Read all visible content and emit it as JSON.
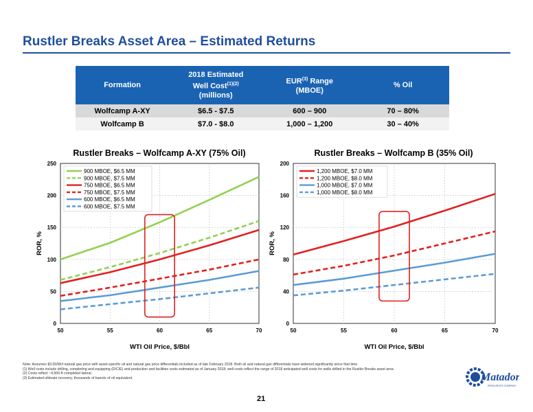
{
  "title": "Rustler Breaks Asset Area – Estimated Returns",
  "table": {
    "headers": {
      "formation": "Formation",
      "cost_line1": "2018 Estimated",
      "cost_line2": "Well Cost",
      "cost_sup": "(1)(2)",
      "cost_line3": "(millions)",
      "eur_line1": "EUR",
      "eur_sup": "(3)",
      "eur_line1b": " Range",
      "eur_line2": "(MBOE)",
      "oil": "% Oil"
    },
    "rows": [
      {
        "formation": "Wolfcamp A-XY",
        "cost": "$6.5 - $7.5",
        "eur": "600 – 900",
        "oil": "70 – 80%"
      },
      {
        "formation": "Wolfcamp B",
        "cost": "$7.0 - $8.0",
        "eur": "1,000 – 1,200",
        "oil": "30 – 40%"
      }
    ]
  },
  "chart_data": [
    {
      "type": "line",
      "title": "Rustler Breaks – Wolfcamp A-XY (75% Oil)",
      "xlabel": "WTI Oil Price, $/Bbl",
      "ylabel": "ROR, %",
      "xlim": [
        50,
        70
      ],
      "ylim": [
        0,
        250
      ],
      "xticks": [
        50,
        55,
        60,
        65,
        70
      ],
      "yticks": [
        0,
        50,
        100,
        150,
        200,
        250
      ],
      "legend_position": "top-left",
      "highlight_box": {
        "x": [
          58.5,
          61.5
        ],
        "y": [
          10,
          170
        ]
      },
      "series": [
        {
          "name": "900 MBOE, $6.5 MM",
          "color": "#92d050",
          "dash": false,
          "x": [
            50,
            55,
            60,
            65,
            70
          ],
          "y": [
            100,
            126,
            158,
            193,
            229
          ]
        },
        {
          "name": "900 MBOE, $7.5 MM",
          "color": "#92d050",
          "dash": true,
          "x": [
            50,
            55,
            60,
            65,
            70
          ],
          "y": [
            68,
            88,
            110,
            134,
            160
          ]
        },
        {
          "name": "750 MBOE, $6.5 MM",
          "color": "#e02020",
          "dash": false,
          "x": [
            50,
            55,
            60,
            65,
            70
          ],
          "y": [
            63,
            80,
            100,
            122,
            146
          ]
        },
        {
          "name": "750 MBOE, $7.5 MM",
          "color": "#e02020",
          "dash": true,
          "x": [
            50,
            55,
            60,
            65,
            70
          ],
          "y": [
            43,
            56,
            70,
            84,
            100
          ]
        },
        {
          "name": "600 MBOE, $6.5 MM",
          "color": "#5b9bd5",
          "dash": false,
          "x": [
            50,
            55,
            60,
            65,
            70
          ],
          "y": [
            35,
            44,
            56,
            68,
            82
          ]
        },
        {
          "name": "600 MBOE, $7.5 MM",
          "color": "#5b9bd5",
          "dash": true,
          "x": [
            50,
            55,
            60,
            65,
            70
          ],
          "y": [
            22,
            30,
            38,
            47,
            56
          ]
        }
      ]
    },
    {
      "type": "line",
      "title": "Rustler Breaks – Wolfcamp B (35% Oil)",
      "xlabel": "WTI Oil Price, $/Bbl",
      "ylabel": "ROR, %",
      "xlim": [
        50,
        70
      ],
      "ylim": [
        0,
        200
      ],
      "xticks": [
        50,
        55,
        60,
        65,
        70
      ],
      "yticks": [
        0,
        40,
        80,
        120,
        160,
        200
      ],
      "legend_position": "top-left",
      "highlight_box": {
        "x": [
          58.5,
          61.5
        ],
        "y": [
          28,
          140
        ]
      },
      "series": [
        {
          "name": "1,200 MBOE, $7.0 MM",
          "color": "#e02020",
          "dash": false,
          "x": [
            50,
            55,
            60,
            65,
            70
          ],
          "y": [
            86,
            103,
            121,
            141,
            162
          ]
        },
        {
          "name": "1,200 MBOE, $8.0 MM",
          "color": "#e02020",
          "dash": true,
          "x": [
            50,
            55,
            60,
            65,
            70
          ],
          "y": [
            61,
            72,
            85,
            100,
            115
          ]
        },
        {
          "name": "1,000 MBOE, $7.0 MM",
          "color": "#5b9bd5",
          "dash": false,
          "x": [
            50,
            55,
            60,
            65,
            70
          ],
          "y": [
            48,
            56,
            66,
            76,
            87
          ]
        },
        {
          "name": "1,000 MBOE, $8.0 MM",
          "color": "#5b9bd5",
          "dash": true,
          "x": [
            50,
            55,
            60,
            65,
            70
          ],
          "y": [
            35,
            41,
            48,
            55,
            62
          ]
        }
      ]
    }
  ],
  "notes": [
    "Note: Assumes $3.00/Mcf natural gas price with asset-specific oil and natural gas price differentials included as of late February 2018. Both oil and natural gas differentials have widened significantly since that time.",
    "(1)    Well costs include drilling, completing and equipping (D/C/E) and production and facilities costs estimated as of January 2018; well costs reflect the range of 2018 anticipated well costs for wells drilled in the Rustler Breaks asset area.",
    "(2)    Costs reflect ~4,500-ft completed lateral.",
    "(3)    Estimated ultimate recovery; thousands of barrels of oil equivalent."
  ],
  "page_number": "21",
  "logo": {
    "text": "Matador",
    "sub": "RESOURCES COMPANY",
    "color": "#1f4e9c"
  }
}
